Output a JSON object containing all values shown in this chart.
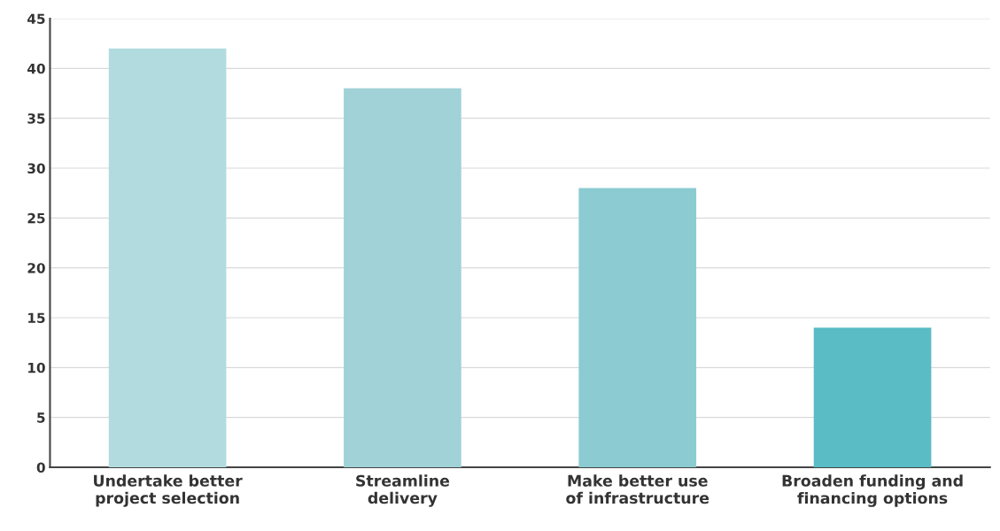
{
  "chart_data": {
    "type": "bar",
    "categories": [
      "Undertake better\nproject selection",
      "Streamline\ndelivery",
      "Make better use\nof infrastructure",
      "Broaden funding and\nfinancing options"
    ],
    "values": [
      42,
      38,
      28,
      14
    ],
    "colors": [
      "#b2dbdf",
      "#a0d2d8",
      "#8bcbd1",
      "#5abcc4"
    ],
    "ylim": [
      0,
      45
    ],
    "yticks": [
      0,
      5,
      10,
      15,
      20,
      25,
      30,
      35,
      40,
      45
    ],
    "grid": "y"
  }
}
